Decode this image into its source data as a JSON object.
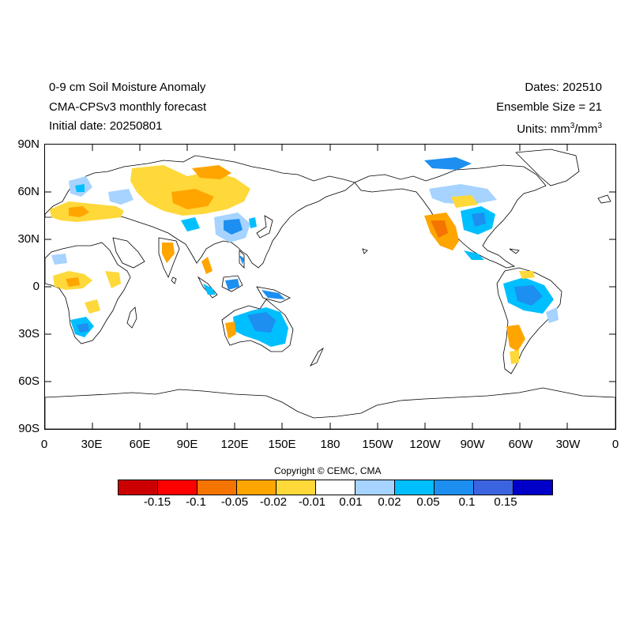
{
  "title": {
    "line1": "0-9 cm Soil Moisture Anomaly",
    "line2": "CMA-CPSv3 monthly forecast",
    "line3": "Initial date: 20250801"
  },
  "info": {
    "dates": "Dates: 202510",
    "ensemble": "Ensemble Size = 21",
    "units_prefix": "Units: mm",
    "units_sup1": "3",
    "units_mid": "/mm",
    "units_sup2": "3"
  },
  "map": {
    "lat_labels": [
      "90N",
      "60N",
      "30N",
      "0",
      "30S",
      "60S",
      "90S"
    ],
    "lon_labels": [
      "0",
      "30E",
      "60E",
      "90E",
      "120E",
      "150E",
      "180",
      "150W",
      "120W",
      "90W",
      "60W",
      "30W",
      "0"
    ],
    "projection_center": "180",
    "anomaly_regions": [
      {
        "region": "Europe / Western Russia",
        "sign": "dry",
        "color": "#ffa500"
      },
      {
        "region": "Central Siberia / Mongolia",
        "sign": "dry",
        "color": "#ffd83a"
      },
      {
        "region": "Southern China",
        "sign": "wet",
        "color": "#33b5f5"
      },
      {
        "region": "Australia",
        "sign": "wet",
        "color": "#1c8ff1"
      },
      {
        "region": "Southwest USA / Mexico",
        "sign": "dry",
        "color": "#f57f17"
      },
      {
        "region": "Amazon",
        "sign": "wet",
        "color": "#1c8ff1"
      },
      {
        "region": "Sahel",
        "sign": "dry",
        "color": "#ffa500"
      }
    ]
  },
  "copyright": "Copyright © CEMC, CMA",
  "colorbar": {
    "colors": [
      "#cc0000",
      "#ff0000",
      "#f57400",
      "#ffa500",
      "#ffd83a",
      "#ffffff",
      "#a6d3ff",
      "#00bfff",
      "#1c8ff1",
      "#3d64e0",
      "#0000c8"
    ],
    "labels": [
      "-0.15",
      "-0.1",
      "-0.05",
      "-0.02",
      "-0.01",
      "0.01",
      "0.02",
      "0.05",
      "0.1",
      "0.15"
    ]
  }
}
